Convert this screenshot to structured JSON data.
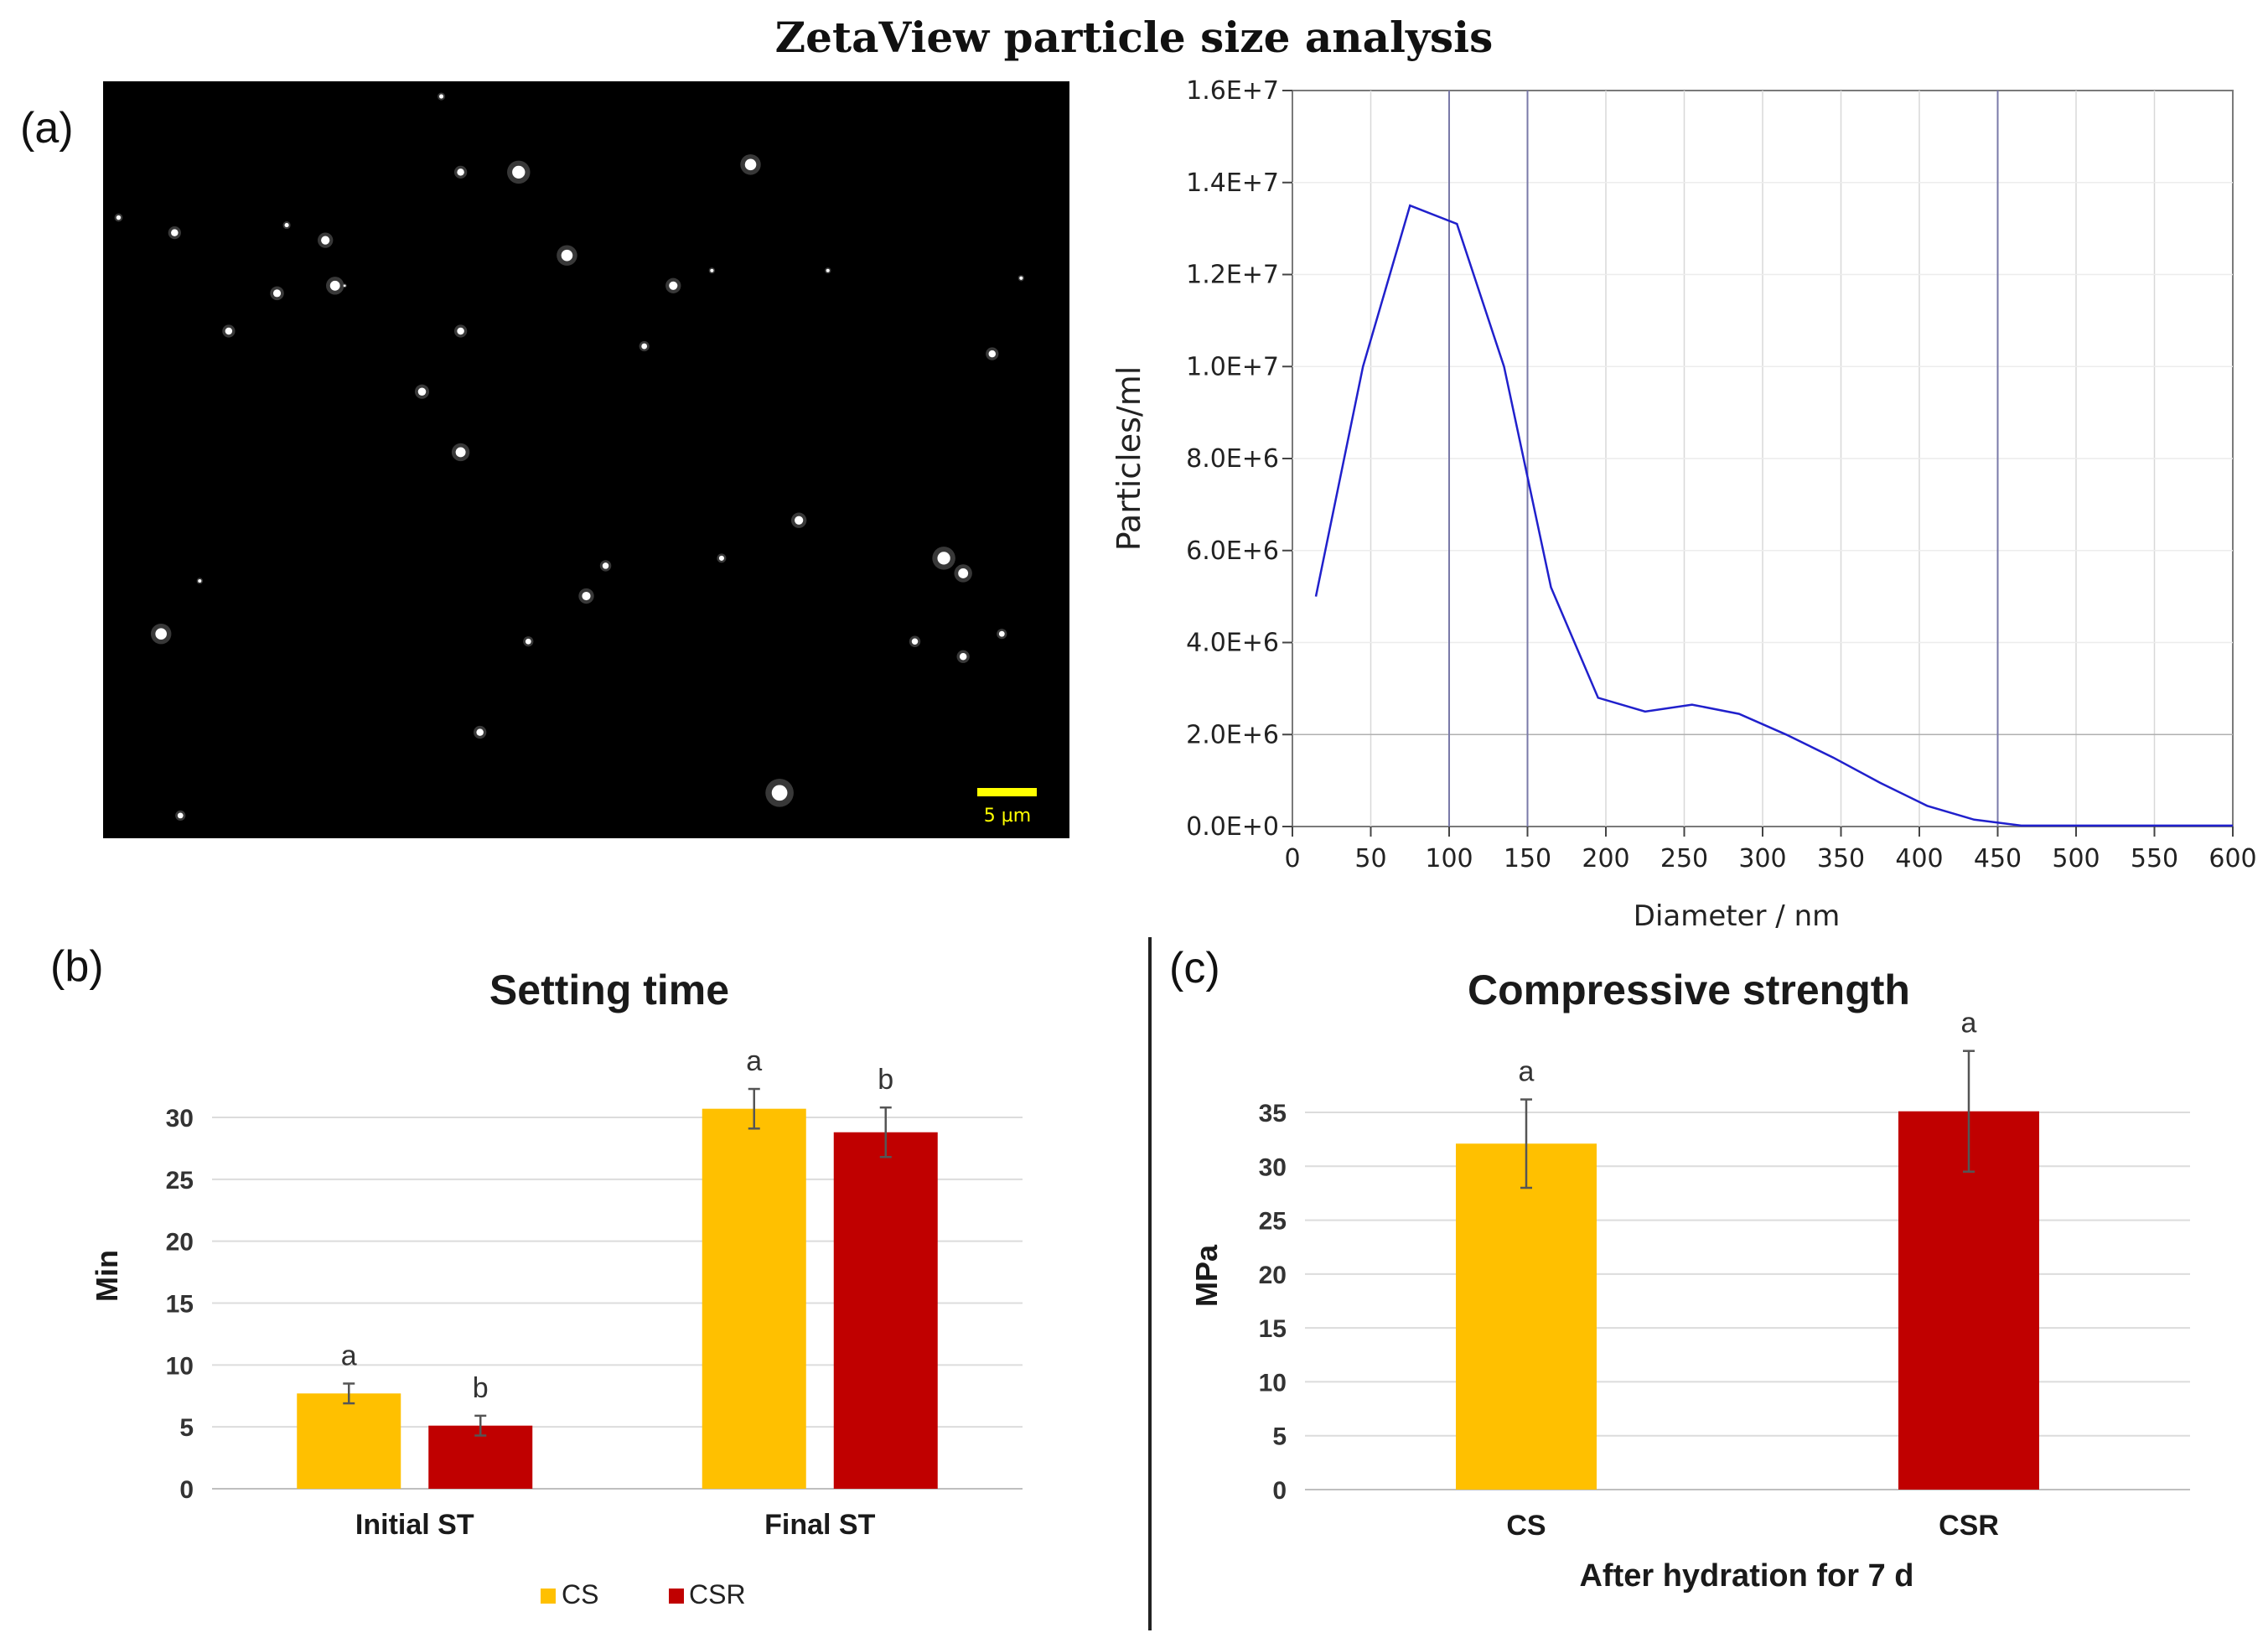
{
  "figure": {
    "title": "ZetaView particle size analysis",
    "panel_a_label": "(a)",
    "panel_b_label": "(b)",
    "panel_c_label": "(c)"
  },
  "micrograph": {
    "scale_label": "5 µm",
    "scale_color": "#ffff00",
    "particles": [
      [
        0.35,
        0.02,
        1.5
      ],
      [
        0.016,
        0.18,
        1.6
      ],
      [
        0.074,
        0.2,
        2.5
      ],
      [
        0.23,
        0.21,
        3
      ],
      [
        0.37,
        0.12,
        2.5
      ],
      [
        0.43,
        0.12,
        4.5
      ],
      [
        0.67,
        0.11,
        4
      ],
      [
        0.24,
        0.27,
        3.5
      ],
      [
        0.25,
        0.27,
        0.8
      ],
      [
        0.95,
        0.26,
        1.2
      ],
      [
        0.19,
        0.19,
        1.5
      ],
      [
        0.63,
        0.25,
        1.2
      ],
      [
        0.18,
        0.28,
        2.7
      ],
      [
        0.48,
        0.23,
        4
      ],
      [
        0.59,
        0.27,
        3
      ],
      [
        0.75,
        0.25,
        1.2
      ],
      [
        0.13,
        0.33,
        2.5
      ],
      [
        0.37,
        0.33,
        2.5
      ],
      [
        0.56,
        0.35,
        2
      ],
      [
        0.92,
        0.36,
        2.5
      ],
      [
        0.33,
        0.41,
        2.8
      ],
      [
        0.37,
        0.49,
        3.5
      ],
      [
        0.72,
        0.58,
        3
      ],
      [
        0.52,
        0.64,
        2.2
      ],
      [
        0.64,
        0.63,
        1.8
      ],
      [
        0.87,
        0.63,
        4.5
      ],
      [
        0.89,
        0.65,
        3.5
      ],
      [
        0.1,
        0.66,
        1.2
      ],
      [
        0.5,
        0.68,
        3
      ],
      [
        0.06,
        0.73,
        4
      ],
      [
        0.44,
        0.74,
        2
      ],
      [
        0.84,
        0.74,
        2.2
      ],
      [
        0.93,
        0.73,
        2
      ],
      [
        0.89,
        0.76,
        2.5
      ],
      [
        0.39,
        0.86,
        2.5
      ],
      [
        0.7,
        0.94,
        5.5
      ],
      [
        0.08,
        0.97,
        2
      ]
    ]
  },
  "chart_data": [
    {
      "type": "line",
      "title": "",
      "xlabel": "Diameter / nm",
      "ylabel": "Particles/ml",
      "xlim": [
        0,
        600
      ],
      "ylim": [
        0,
        16000000
      ],
      "x_ticks": [
        "0",
        "50",
        "100",
        "150",
        "200",
        "250",
        "300",
        "350",
        "400",
        "450",
        "500",
        "550",
        "600"
      ],
      "y_ticks": [
        "0.0E+0",
        "2.0E+6",
        "4.0E+6",
        "6.0E+6",
        "8.0E+6",
        "1.0E+7",
        "1.2E+7",
        "1.4E+7",
        "1.6E+7"
      ],
      "vertical_markers": [
        100,
        150,
        450
      ],
      "grid": true,
      "line_color": "#2020cc",
      "series": [
        {
          "x": [
            15,
            45,
            75,
            105,
            135,
            165,
            195,
            225,
            255,
            285,
            315,
            345,
            375,
            405,
            435,
            465,
            495,
            525,
            555,
            585,
            600
          ],
          "values": [
            5000000,
            10000000,
            13500000,
            13100000,
            10000000,
            5200000,
            2800000,
            2500000,
            2650000,
            2450000,
            2000000,
            1500000,
            950000,
            450000,
            150000,
            20000,
            20000,
            20000,
            20000,
            20000,
            20000
          ]
        }
      ]
    },
    {
      "type": "bar",
      "title": "Setting time",
      "xlabel": "",
      "ylabel": "Min",
      "ylim": [
        0,
        30
      ],
      "y_ticks": [
        "0",
        "5",
        "10",
        "15",
        "20",
        "25",
        "30"
      ],
      "categories": [
        "Initial ST",
        "Final ST"
      ],
      "series": [
        {
          "name": "CS",
          "color": "#ffc000",
          "values": [
            7.7,
            30.7
          ],
          "errors": [
            0.8,
            1.6
          ],
          "letters": [
            "a",
            "a"
          ]
        },
        {
          "name": "CSR",
          "color": "#c00000",
          "values": [
            5.1,
            28.8
          ],
          "errors": [
            0.8,
            2.0
          ],
          "letters": [
            "b",
            "b"
          ]
        }
      ],
      "legend": "bottom"
    },
    {
      "type": "bar",
      "title": "Compressive strength",
      "xlabel": "After hydration for 7 d",
      "ylabel": "MPa",
      "ylim": [
        0,
        35
      ],
      "y_ticks": [
        "0",
        "5",
        "10",
        "15",
        "20",
        "25",
        "30",
        "35"
      ],
      "categories": [
        "CS",
        "CSR"
      ],
      "colors": [
        "#ffc000",
        "#c00000"
      ],
      "values": [
        32.1,
        35.1
      ],
      "errors": [
        4.1,
        5.6
      ],
      "letters": [
        "a",
        "a"
      ]
    }
  ]
}
